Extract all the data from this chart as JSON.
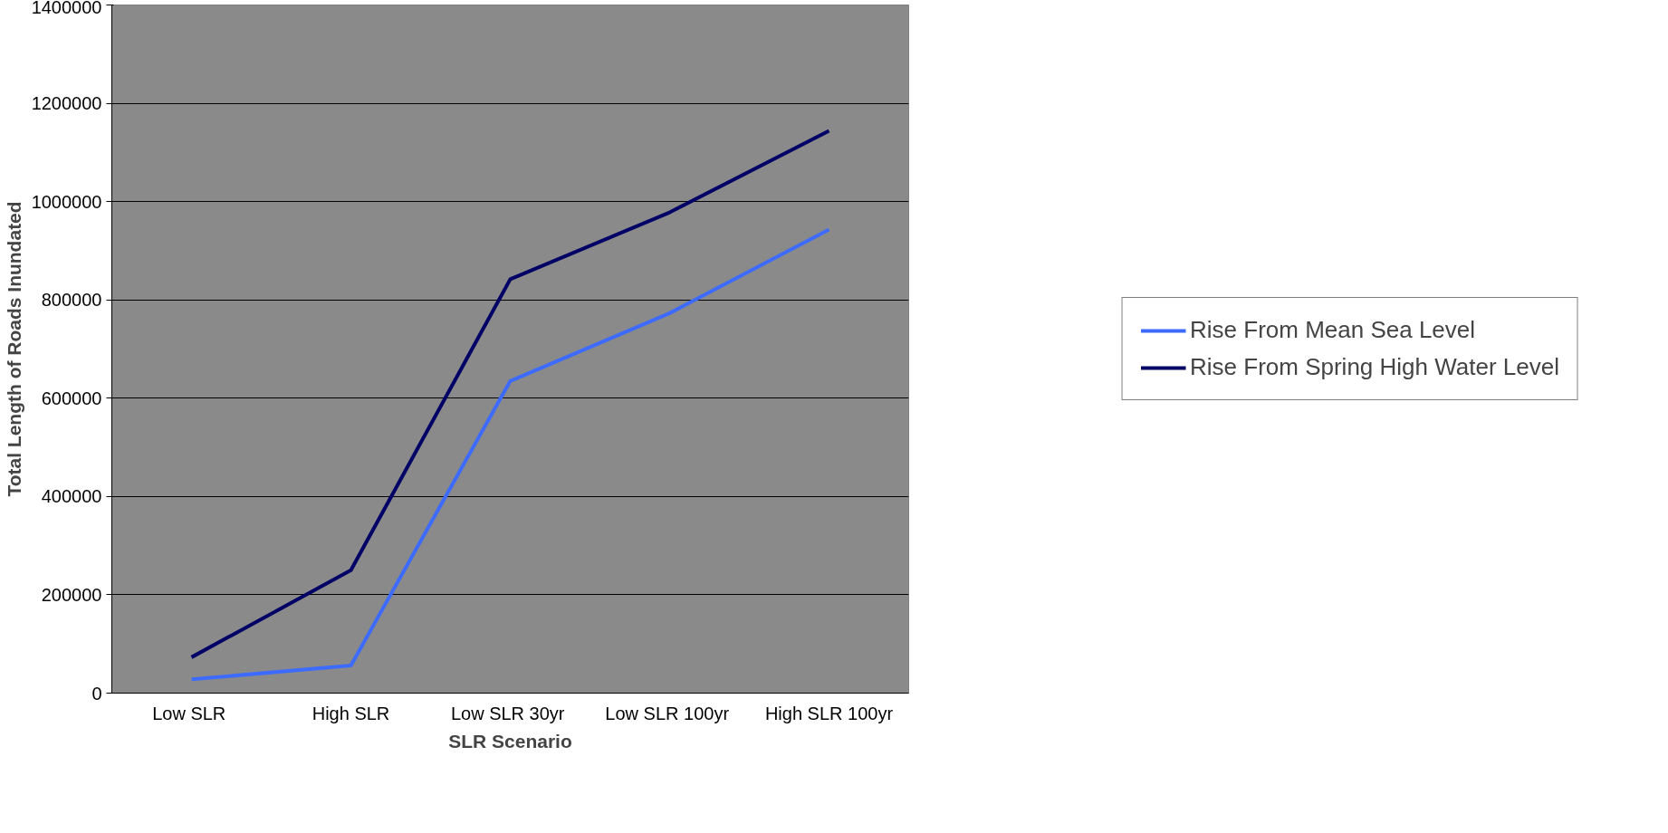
{
  "chart_data": {
    "type": "line",
    "xlabel": "SLR Scenario",
    "ylabel": "Total Length of Roads Inundated",
    "categories": [
      "Low  SLR",
      "High SLR",
      "Low  SLR 30yr",
      "Low  SLR 100yr",
      "High SLR 100yr"
    ],
    "series": [
      {
        "name": "Rise From Mean Sea Level",
        "color": "#3d6bff",
        "values": [
          28000,
          56000,
          635000,
          773000,
          943000
        ]
      },
      {
        "name": "Rise From Spring High Water Level",
        "color": "#000066",
        "values": [
          73000,
          250000,
          842000,
          978000,
          1144000
        ]
      }
    ],
    "ylim": [
      0,
      1400000
    ],
    "yticks": [
      0,
      200000,
      400000,
      600000,
      800000,
      1000000,
      1200000,
      1400000
    ],
    "grid": "y",
    "legend": "right",
    "marker": "none",
    "line_style": "solid"
  }
}
